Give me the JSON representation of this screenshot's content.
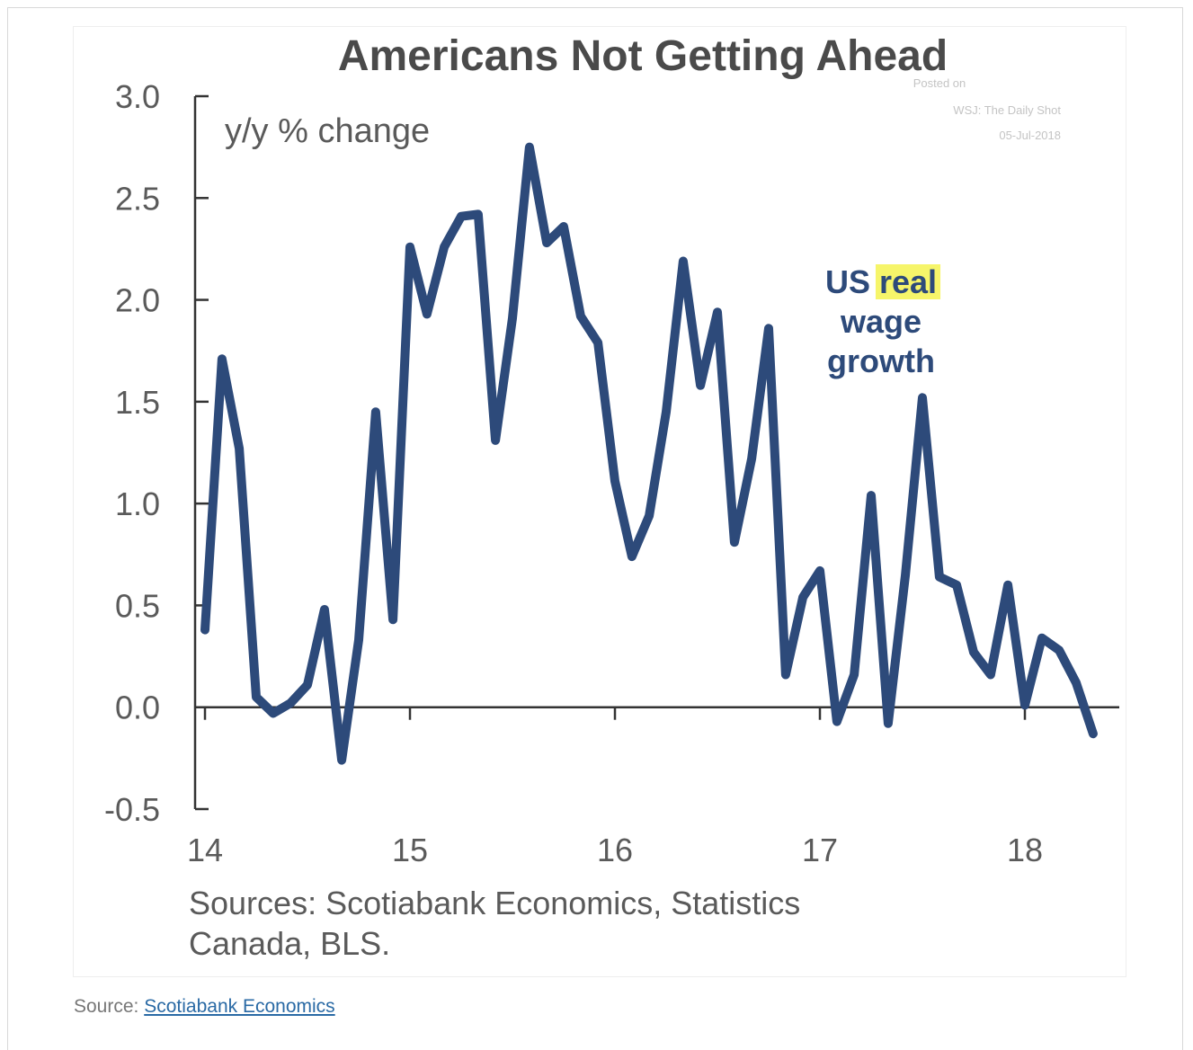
{
  "chart_data": {
    "type": "line",
    "title": "Americans Not Getting Ahead",
    "ylabel": "y/y % change",
    "ylim": [
      -0.5,
      3.0
    ],
    "yticks": [
      "3.0",
      "2.5",
      "2.0",
      "1.5",
      "1.0",
      "0.5",
      "0.0",
      "-0.5"
    ],
    "xticks": [
      "14",
      "15",
      "16",
      "17",
      "18"
    ],
    "series": [
      {
        "name": "US real wage growth",
        "color": "#2d4a7a",
        "x": [
          14.0,
          14.083,
          14.167,
          14.25,
          14.333,
          14.417,
          14.5,
          14.583,
          14.667,
          14.75,
          14.833,
          14.917,
          15.0,
          15.083,
          15.167,
          15.25,
          15.333,
          15.417,
          15.5,
          15.583,
          15.667,
          15.75,
          15.833,
          15.917,
          16.0,
          16.083,
          16.167,
          16.25,
          16.333,
          16.417,
          16.5,
          16.583,
          16.667,
          16.75,
          16.833,
          16.917,
          17.0,
          17.083,
          17.167,
          17.25,
          17.333,
          17.417,
          17.5,
          17.583,
          17.667,
          17.75,
          17.833,
          17.917,
          18.0,
          18.083,
          18.167,
          18.25,
          18.333
        ],
        "y": [
          0.38,
          1.71,
          1.27,
          0.05,
          -0.03,
          0.02,
          0.11,
          0.48,
          -0.26,
          0.33,
          1.45,
          0.43,
          2.26,
          1.93,
          2.26,
          2.41,
          2.42,
          1.31,
          1.91,
          2.75,
          2.28,
          2.36,
          1.92,
          1.79,
          1.11,
          0.74,
          0.94,
          1.45,
          2.19,
          1.58,
          1.94,
          0.81,
          1.22,
          1.86,
          0.16,
          0.54,
          0.67,
          -0.07,
          0.16,
          1.04,
          -0.08,
          0.65,
          1.52,
          0.64,
          0.6,
          0.27,
          0.16,
          0.6,
          0.01,
          0.34,
          0.28,
          0.12,
          -0.13
        ]
      }
    ],
    "annotation": {
      "line1_prefix": "US ",
      "line1_highlight": "real",
      "line2": "wage",
      "line3": "growth",
      "highlight_color": "#f6f56a"
    },
    "watermark": {
      "line1": "Posted on",
      "line2": "WSJ: The Daily Shot",
      "line3": "05-Jul-2018"
    },
    "sources_line1": "Sources: Scotiabank Economics, Statistics",
    "sources_line2": "Canada, BLS."
  },
  "footer": {
    "label": "Source: ",
    "link_text": "Scotiabank Economics"
  }
}
